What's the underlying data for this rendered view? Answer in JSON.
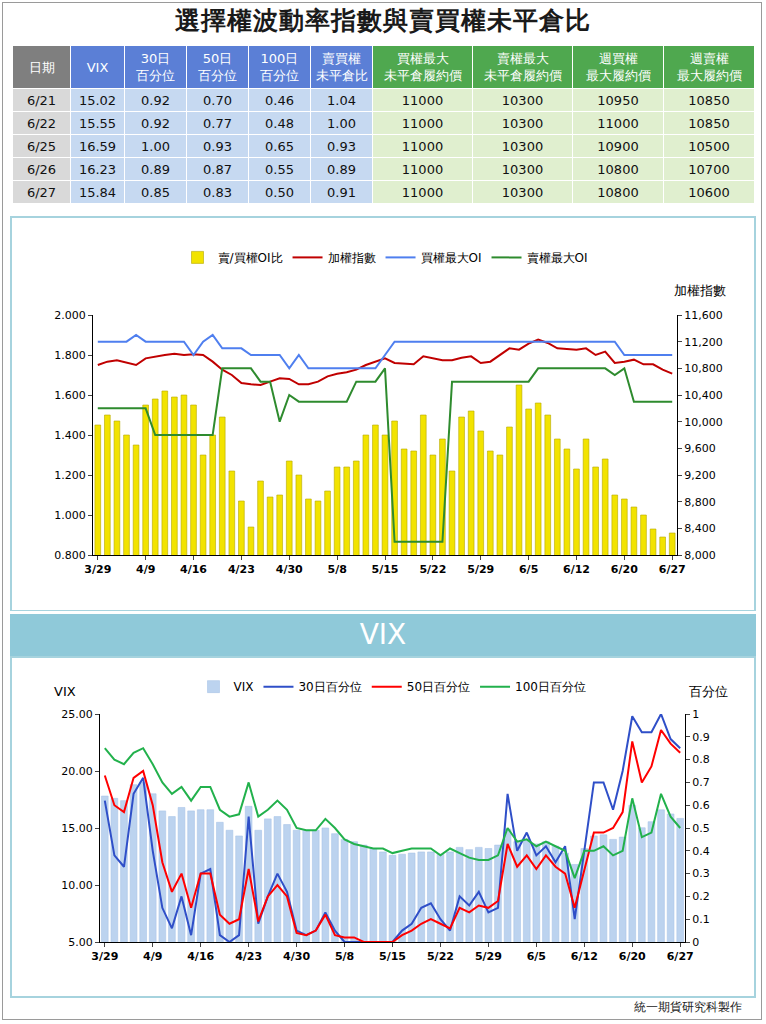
{
  "title": "選擇權波動率指數與賣買權未平倉比",
  "table": {
    "header": [
      [
        "日期"
      ],
      [
        "VIX"
      ],
      [
        "30日",
        "百分位"
      ],
      [
        "50日",
        "百分位"
      ],
      [
        "100日",
        "百分位"
      ],
      [
        "賣買權",
        "未平倉比"
      ],
      [
        "買權最大",
        "未平倉履約價"
      ],
      [
        "賣權最大",
        "未平倉履約價"
      ],
      [
        "週買權",
        "最大履約價"
      ],
      [
        "週賣權",
        "最大履約價"
      ]
    ],
    "rows": [
      [
        "6/21",
        "15.02",
        "0.92",
        "0.70",
        "0.46",
        "1.04",
        "11000",
        "10300",
        "10950",
        "10850"
      ],
      [
        "6/22",
        "15.55",
        "0.92",
        "0.77",
        "0.48",
        "1.00",
        "11000",
        "10300",
        "11000",
        "10850"
      ],
      [
        "6/25",
        "16.59",
        "1.00",
        "0.93",
        "0.65",
        "0.93",
        "11000",
        "10300",
        "10900",
        "10500"
      ],
      [
        "6/26",
        "16.23",
        "0.89",
        "0.87",
        "0.55",
        "0.89",
        "11000",
        "10300",
        "10800",
        "10700"
      ],
      [
        "6/27",
        "15.84",
        "0.85",
        "0.83",
        "0.50",
        "0.91",
        "11000",
        "10300",
        "10800",
        "10600"
      ]
    ]
  },
  "section_title": "VIX",
  "footer": "統一期貨研究科製作",
  "chart_data": [
    {
      "type": "bar",
      "categories": [
        "3/29",
        null,
        null,
        null,
        null,
        "4/9",
        null,
        null,
        null,
        null,
        "4/16",
        null,
        null,
        null,
        null,
        "4/23",
        null,
        null,
        null,
        null,
        "4/30",
        null,
        null,
        null,
        null,
        "5/8",
        null,
        null,
        null,
        null,
        "5/15",
        null,
        null,
        null,
        null,
        "5/22",
        null,
        null,
        null,
        null,
        "5/29",
        null,
        null,
        null,
        null,
        "6/5",
        null,
        null,
        null,
        null,
        "6/12",
        null,
        null,
        null,
        null,
        "6/20",
        null,
        null,
        null,
        null,
        "6/27"
      ],
      "series": [
        {
          "name": "賣/買權OI比",
          "type": "bar",
          "color": "#f2e300",
          "values": [
            1.45,
            1.5,
            1.47,
            1.4,
            1.35,
            1.55,
            1.58,
            1.62,
            1.59,
            1.6,
            1.55,
            1.3,
            1.4,
            1.49,
            1.22,
            1.07,
            0.94,
            1.17,
            1.09,
            1.1,
            1.27,
            1.2,
            1.08,
            1.07,
            1.12,
            1.24,
            1.24,
            1.27,
            1.4,
            1.45,
            1.4,
            1.47,
            1.33,
            1.32,
            1.5,
            1.3,
            1.38,
            1.22,
            1.49,
            1.52,
            1.42,
            1.32,
            1.3,
            1.44,
            1.65,
            1.53,
            1.56,
            1.5,
            1.38,
            1.33,
            1.23,
            1.38,
            1.24,
            1.28,
            1.1,
            1.08,
            1.04,
            1.0,
            0.93,
            0.89,
            0.91
          ]
        },
        {
          "name": "加權指數",
          "type": "line",
          "color": "#c00000",
          "axis": "y2",
          "values": [
            10850,
            10900,
            10920,
            10880,
            10850,
            10950,
            10980,
            11000,
            11020,
            11000,
            11010,
            11000,
            10900,
            10780,
            10700,
            10580,
            10560,
            10550,
            10600,
            10650,
            10640,
            10560,
            10560,
            10600,
            10680,
            10720,
            10740,
            10780,
            10850,
            10900,
            10950,
            10880,
            10870,
            10860,
            10980,
            10950,
            10920,
            10920,
            10960,
            10980,
            10880,
            10900,
            11000,
            11100,
            11080,
            11170,
            11230,
            11180,
            11100,
            11090,
            11080,
            11100,
            11000,
            11050,
            10880,
            10900,
            10930,
            10860,
            10860,
            10780,
            10720
          ]
        },
        {
          "name": "買權最大OI",
          "type": "line",
          "color": "#4f7fef",
          "axis": "y2",
          "values": [
            11200,
            11200,
            11200,
            11200,
            11300,
            11200,
            11200,
            11200,
            11200,
            11200,
            11000,
            11200,
            11300,
            11100,
            11100,
            11100,
            11000,
            11000,
            11000,
            11000,
            10800,
            11000,
            10800,
            10800,
            10800,
            10800,
            10800,
            10800,
            10800,
            10800,
            11000,
            11200,
            11200,
            11200,
            11200,
            11200,
            11200,
            11200,
            11200,
            11200,
            11200,
            11200,
            11200,
            11200,
            11200,
            11200,
            11200,
            11200,
            11200,
            11200,
            11200,
            11200,
            11200,
            11200,
            11200,
            11000,
            11000,
            11000,
            11000,
            11000,
            11000
          ]
        },
        {
          "name": "賣權最大OI",
          "type": "line",
          "color": "#2e8b2e",
          "axis": "y2",
          "values": [
            10200,
            10200,
            10200,
            10200,
            10200,
            10200,
            9800,
            9800,
            9800,
            9800,
            9800,
            9800,
            9800,
            10800,
            10800,
            10800,
            10800,
            10600,
            10600,
            10000,
            10400,
            10300,
            10300,
            10300,
            10300,
            10300,
            10300,
            10600,
            10600,
            10600,
            10800,
            8200,
            8200,
            8200,
            8200,
            8200,
            8200,
            10600,
            10600,
            10600,
            10600,
            10600,
            10600,
            10600,
            10600,
            10600,
            10800,
            10800,
            10800,
            10800,
            10800,
            10800,
            10800,
            10800,
            10700,
            10800,
            10300,
            10300,
            10300,
            10300,
            10300
          ]
        }
      ],
      "ylim": [
        0.8,
        2.0
      ],
      "yticks": [
        {
          "value": 0.8,
          "label": "0.800"
        },
        {
          "value": 1.0,
          "label": "1.000"
        },
        {
          "value": 1.2,
          "label": "1.200"
        },
        {
          "value": 1.4,
          "label": "1.400"
        },
        {
          "value": 1.6,
          "label": "1.600"
        },
        {
          "value": 1.8,
          "label": "1.800"
        },
        {
          "value": 2.0,
          "label": "2.000"
        }
      ],
      "y2lim": [
        8000,
        11600
      ],
      "y2ticks": [
        {
          "value": 8000,
          "label": "8,000"
        },
        {
          "value": 8400,
          "label": "8,400"
        },
        {
          "value": 8800,
          "label": "8,800"
        },
        {
          "value": 9200,
          "label": "9,200"
        },
        {
          "value": 9600,
          "label": "9,600"
        },
        {
          "value": 10000,
          "label": "10,000"
        },
        {
          "value": 10400,
          "label": "10,400"
        },
        {
          "value": 10800,
          "label": "10,800"
        },
        {
          "value": 11200,
          "label": "11,200"
        },
        {
          "value": 11600,
          "label": "11,600"
        }
      ],
      "y2label": "加權指數",
      "grid": false,
      "legend": "top"
    },
    {
      "type": "bar",
      "categories": [
        "3/29",
        null,
        null,
        null,
        null,
        "4/9",
        null,
        null,
        null,
        null,
        "4/16",
        null,
        null,
        null,
        null,
        "4/23",
        null,
        null,
        null,
        null,
        "4/30",
        null,
        null,
        null,
        null,
        "5/8",
        null,
        null,
        null,
        null,
        "5/15",
        null,
        null,
        null,
        null,
        "5/22",
        null,
        null,
        null,
        null,
        "5/29",
        null,
        null,
        null,
        null,
        "6/5",
        null,
        null,
        null,
        null,
        "6/12",
        null,
        null,
        null,
        null,
        "6/20",
        null,
        null,
        null,
        null,
        "6/27"
      ],
      "series": [
        {
          "name": "VIX",
          "type": "bar",
          "color": "#bcd3ef",
          "values": [
            17.8,
            17.6,
            17.4,
            18.8,
            19.0,
            18.0,
            16.5,
            16.0,
            16.8,
            16.5,
            16.6,
            16.6,
            15.5,
            14.8,
            14.3,
            16.9,
            14.8,
            15.8,
            16.0,
            15.3,
            14.8,
            14.8,
            14.8,
            15.0,
            14.5,
            14.0,
            13.8,
            13.5,
            13.2,
            12.9,
            12.6,
            12.7,
            12.8,
            12.9,
            12.9,
            12.7,
            12.9,
            13.3,
            13.1,
            13.3,
            13.2,
            13.5,
            14.9,
            13.8,
            14.0,
            13.6,
            13.8,
            13.4,
            12.8,
            11.8,
            13.2,
            14.3,
            14.4,
            14.0,
            14.2,
            17.0,
            15.02,
            15.55,
            16.59,
            16.23,
            15.84
          ]
        },
        {
          "name": "30日百分位",
          "type": "line",
          "color": "#2f4fc8",
          "axis": "y2",
          "values": [
            0.62,
            0.38,
            0.33,
            0.65,
            0.72,
            0.4,
            0.15,
            0.06,
            0.2,
            0.03,
            0.3,
            0.32,
            0.03,
            0.0,
            0.03,
            0.55,
            0.08,
            0.2,
            0.3,
            0.22,
            0.05,
            0.03,
            0.05,
            0.13,
            0.05,
            0.0,
            0.0,
            0.0,
            0.0,
            0.0,
            0.0,
            0.05,
            0.08,
            0.15,
            0.17,
            0.1,
            0.05,
            0.2,
            0.16,
            0.22,
            0.13,
            0.15,
            0.65,
            0.4,
            0.48,
            0.38,
            0.42,
            0.35,
            0.42,
            0.1,
            0.4,
            0.7,
            0.7,
            0.58,
            0.75,
            0.99,
            0.92,
            0.92,
            1.0,
            0.89,
            0.85
          ]
        },
        {
          "name": "50日百分位",
          "type": "line",
          "color": "#ff0000",
          "axis": "y2",
          "values": [
            0.73,
            0.6,
            0.57,
            0.72,
            0.75,
            0.6,
            0.35,
            0.22,
            0.3,
            0.15,
            0.3,
            0.3,
            0.12,
            0.08,
            0.1,
            0.32,
            0.09,
            0.2,
            0.25,
            0.2,
            0.04,
            0.03,
            0.05,
            0.12,
            0.03,
            0.02,
            0.02,
            0.0,
            0.0,
            0.0,
            0.0,
            0.03,
            0.05,
            0.08,
            0.1,
            0.08,
            0.06,
            0.15,
            0.13,
            0.16,
            0.15,
            0.18,
            0.43,
            0.33,
            0.38,
            0.32,
            0.38,
            0.33,
            0.3,
            0.15,
            0.32,
            0.48,
            0.48,
            0.5,
            0.57,
            0.88,
            0.7,
            0.77,
            0.93,
            0.87,
            0.83
          ]
        },
        {
          "name": "100日百分位",
          "type": "line",
          "color": "#22b14c",
          "axis": "y2",
          "values": [
            0.85,
            0.8,
            0.78,
            0.83,
            0.85,
            0.78,
            0.7,
            0.65,
            0.68,
            0.62,
            0.68,
            0.68,
            0.58,
            0.55,
            0.56,
            0.7,
            0.55,
            0.58,
            0.62,
            0.58,
            0.5,
            0.49,
            0.49,
            0.54,
            0.5,
            0.45,
            0.43,
            0.42,
            0.41,
            0.41,
            0.39,
            0.4,
            0.41,
            0.41,
            0.41,
            0.38,
            0.41,
            0.39,
            0.37,
            0.36,
            0.36,
            0.38,
            0.5,
            0.44,
            0.45,
            0.42,
            0.44,
            0.42,
            0.4,
            0.28,
            0.4,
            0.4,
            0.42,
            0.38,
            0.4,
            0.63,
            0.46,
            0.48,
            0.65,
            0.55,
            0.5
          ]
        }
      ],
      "ylim": [
        5,
        25
      ],
      "yticks": [
        {
          "value": 5,
          "label": "5.00"
        },
        {
          "value": 10,
          "label": "10.00"
        },
        {
          "value": 15,
          "label": "15.00"
        },
        {
          "value": 20,
          "label": "20.00"
        },
        {
          "value": 25,
          "label": "25.00"
        }
      ],
      "y2lim": [
        0,
        1
      ],
      "y2ticks": [
        0,
        0.1,
        0.2,
        0.3,
        0.4,
        0.5,
        0.6,
        0.7,
        0.8,
        0.9,
        1
      ],
      "ylabel": "VIX",
      "y2label": "百分位",
      "grid": false,
      "legend": "top"
    }
  ]
}
